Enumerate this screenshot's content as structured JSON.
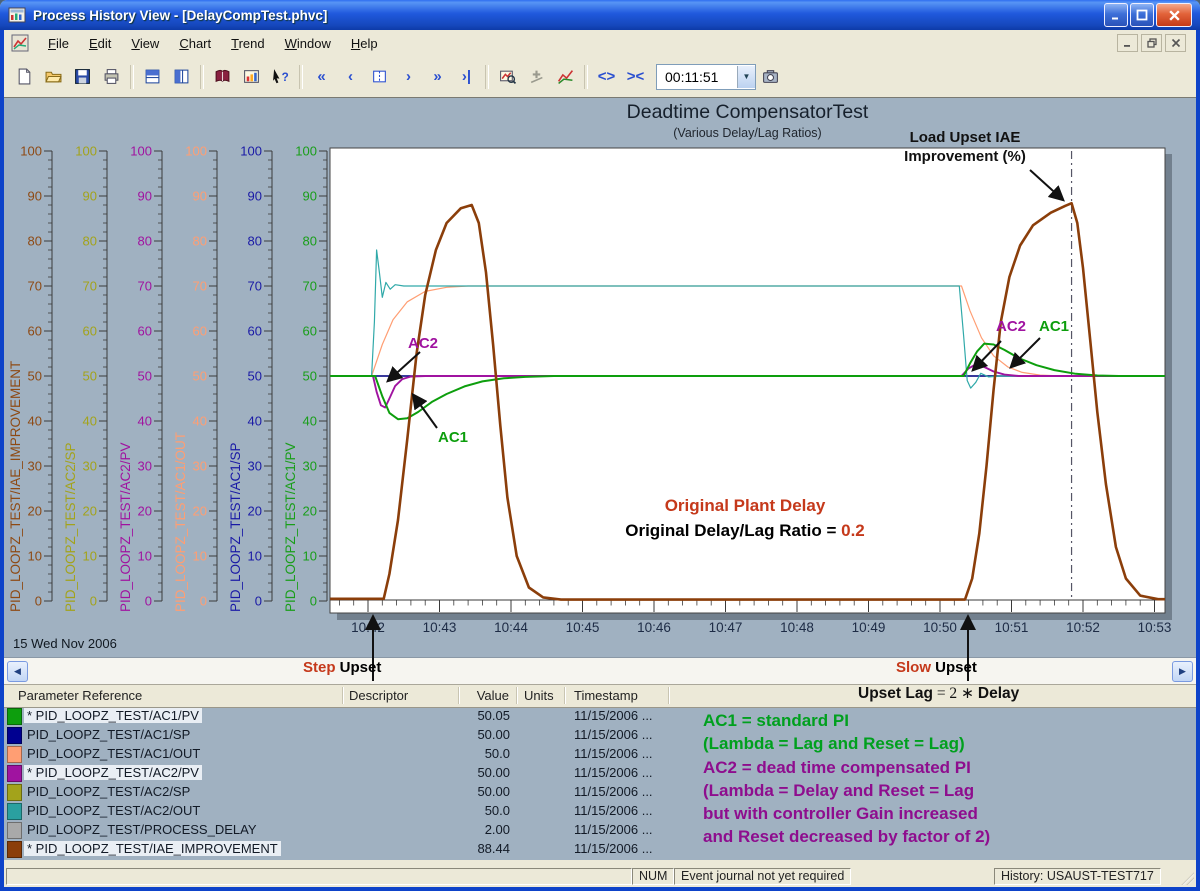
{
  "window": {
    "title": "Process History View - [DelayCompTest.phvc]",
    "menu": [
      "File",
      "Edit",
      "View",
      "Chart",
      "Trend",
      "Window",
      "Help"
    ]
  },
  "toolbar": {
    "items": [
      "new-file",
      "open-folder",
      "save",
      "print",
      "|",
      "tile-horizontal",
      "tile-vertical",
      "|",
      "help-book",
      "chart-settings",
      "context-help",
      "|",
      "nav-first",
      "nav-prev",
      "nav-page",
      "nav-next",
      "nav-jump",
      "nav-last",
      "|",
      "view-all",
      "add-curve",
      "curve-style",
      "|",
      "expand-x",
      "compress-x",
      "time-combo",
      "snapshot"
    ],
    "glyphs": {
      "nav-first": "«",
      "nav-prev": "‹",
      "nav-next": "›",
      "nav-jump": "»",
      "nav-last": "›|",
      "expand-x": "<>",
      "compress-x": "><"
    },
    "time_value": "00:11:51"
  },
  "chart_data": {
    "type": "line",
    "title": "Deadtime CompensatorTest",
    "subtitle": "(Various Delay/Lag Ratios)",
    "date_label": "15 Wed Nov 2006",
    "x_axis": {
      "labels": [
        "10:42",
        "10:43",
        "10:44",
        "10:45",
        "10:46",
        "10:47",
        "10:48",
        "10:49",
        "10:50",
        "10:51",
        "10:52",
        "10:53"
      ],
      "unit": "time (hh:mm)"
    },
    "y_axis": {
      "range": [
        0,
        100
      ],
      "ticks": [
        0,
        10,
        20,
        30,
        40,
        50,
        60,
        70,
        80,
        90,
        100
      ]
    },
    "axes": [
      {
        "label": "PID_LOOPZ_TEST/IAE_IMPROVEMENT",
        "color": "#8E4A14"
      },
      {
        "label": "PID_LOOPZ_TEST/AC2/SP",
        "color": "#A3A31B"
      },
      {
        "label": "PID_LOOPZ_TEST/AC2/PV",
        "color": "#A013A0"
      },
      {
        "label": "PID_LOOPZ_TEST/AC1/OUT",
        "color": "#FF9E73"
      },
      {
        "label": "PID_LOOPZ_TEST/AC1/SP",
        "color": "#1A1AA6"
      },
      {
        "label": "PID_LOOPZ_TEST/AC1/PV",
        "color": "#199E19"
      }
    ],
    "series": [
      {
        "name": "PID_LOOPZ_TEST/AC2/SP",
        "color": "#A3A31B",
        "width": 1.3,
        "points": [
          [
            -0.53,
            50
          ],
          [
            11.15,
            50
          ]
        ]
      },
      {
        "name": "PID_LOOPZ_TEST/AC1/SP",
        "color": "#00008F",
        "width": 1.5,
        "points": [
          [
            -0.53,
            50
          ],
          [
            11.15,
            50
          ]
        ]
      },
      {
        "name": "PID_LOOPZ_TEST/AC1/OUT",
        "color": "#FF9E73",
        "width": 1.2,
        "points": [
          [
            -0.53,
            50
          ],
          [
            0.05,
            50
          ],
          [
            0.2,
            57
          ],
          [
            0.35,
            62.5
          ],
          [
            0.55,
            66.5
          ],
          [
            0.8,
            68.8
          ],
          [
            1.1,
            69.7
          ],
          [
            1.4,
            70
          ],
          [
            8.3,
            70
          ],
          [
            8.42,
            64.5
          ],
          [
            8.58,
            58.5
          ],
          [
            8.75,
            54.5
          ],
          [
            8.95,
            52
          ],
          [
            9.15,
            50.8
          ],
          [
            9.4,
            50.2
          ],
          [
            9.7,
            50
          ],
          [
            11.15,
            50
          ]
        ]
      },
      {
        "name": "PID_LOOPZ_TEST/AC2/OUT",
        "color": "#30A9A9",
        "width": 1.2,
        "points": [
          [
            -0.53,
            50
          ],
          [
            0.05,
            50
          ],
          [
            0.09,
            62
          ],
          [
            0.12,
            78
          ],
          [
            0.16,
            73
          ],
          [
            0.2,
            67.5
          ],
          [
            0.25,
            70.8
          ],
          [
            0.31,
            69.3
          ],
          [
            0.38,
            70.3
          ],
          [
            0.5,
            70
          ],
          [
            8.27,
            70
          ],
          [
            8.33,
            59
          ],
          [
            8.38,
            49
          ],
          [
            8.43,
            47.3
          ],
          [
            8.5,
            48.6
          ],
          [
            8.57,
            50.6
          ],
          [
            8.68,
            49.8
          ],
          [
            8.85,
            50
          ],
          [
            11.15,
            50
          ]
        ]
      },
      {
        "name": "PID_LOOPZ_TEST/AC2/PV",
        "color": "#A013A0",
        "width": 1.9,
        "points": [
          [
            -0.53,
            50
          ],
          [
            0.07,
            50
          ],
          [
            0.12,
            46.5
          ],
          [
            0.18,
            43.5
          ],
          [
            0.24,
            43
          ],
          [
            0.3,
            45
          ],
          [
            0.38,
            47.8
          ],
          [
            0.48,
            49.3
          ],
          [
            0.6,
            49.9
          ],
          [
            0.8,
            50
          ],
          [
            8.3,
            50
          ],
          [
            8.4,
            51.7
          ],
          [
            8.5,
            52.6
          ],
          [
            8.62,
            52
          ],
          [
            8.75,
            51
          ],
          [
            8.9,
            50.3
          ],
          [
            9.1,
            50
          ],
          [
            11.15,
            50
          ]
        ]
      },
      {
        "name": "PID_LOOPZ_TEST/AC1/PV",
        "color": "#0D9E0D",
        "width": 2.0,
        "points": [
          [
            -0.53,
            50
          ],
          [
            0.1,
            50
          ],
          [
            0.2,
            45.5
          ],
          [
            0.3,
            41.8
          ],
          [
            0.42,
            40.4
          ],
          [
            0.55,
            40.6
          ],
          [
            0.7,
            42
          ],
          [
            0.9,
            44.3
          ],
          [
            1.1,
            46
          ],
          [
            1.35,
            47.7
          ],
          [
            1.6,
            48.8
          ],
          [
            1.9,
            49.5
          ],
          [
            2.2,
            49.8
          ],
          [
            2.6,
            50
          ],
          [
            8.33,
            50
          ],
          [
            8.42,
            52.8
          ],
          [
            8.52,
            55.5
          ],
          [
            8.62,
            57.2
          ],
          [
            8.75,
            57
          ],
          [
            8.9,
            55.8
          ],
          [
            9.1,
            54
          ],
          [
            9.35,
            52.4
          ],
          [
            9.6,
            51.3
          ],
          [
            9.9,
            50.5
          ],
          [
            10.2,
            50.1
          ],
          [
            10.5,
            50
          ],
          [
            11.15,
            50
          ]
        ]
      },
      {
        "name": "PID_LOOPZ_TEST/IAE_IMPROVEMENT",
        "color": "#8B3E0A",
        "width": 2.6,
        "points": [
          [
            -0.53,
            0.5
          ],
          [
            0.22,
            0.5
          ],
          [
            0.3,
            6
          ],
          [
            0.42,
            18
          ],
          [
            0.55,
            36
          ],
          [
            0.68,
            55
          ],
          [
            0.8,
            68
          ],
          [
            0.95,
            78
          ],
          [
            1.1,
            84
          ],
          [
            1.3,
            87.3
          ],
          [
            1.45,
            88
          ],
          [
            1.55,
            84
          ],
          [
            1.65,
            73
          ],
          [
            1.75,
            57
          ],
          [
            1.85,
            39
          ],
          [
            1.95,
            23
          ],
          [
            2.08,
            10
          ],
          [
            2.25,
            3
          ],
          [
            2.45,
            0.8
          ],
          [
            2.7,
            0.3
          ],
          [
            8.35,
            0.3
          ],
          [
            8.45,
            5
          ],
          [
            8.55,
            15
          ],
          [
            8.65,
            30
          ],
          [
            8.75,
            47
          ],
          [
            8.85,
            62
          ],
          [
            8.97,
            72
          ],
          [
            9.12,
            79
          ],
          [
            9.3,
            83.5
          ],
          [
            9.55,
            86.3
          ],
          [
            9.75,
            87.8
          ],
          [
            9.84,
            88.4
          ],
          [
            9.92,
            84
          ],
          [
            10.0,
            74
          ],
          [
            10.1,
            58
          ],
          [
            10.2,
            42
          ],
          [
            10.32,
            26
          ],
          [
            10.46,
            12
          ],
          [
            10.6,
            5
          ],
          [
            10.8,
            1.2
          ],
          [
            11.05,
            0.4
          ],
          [
            11.15,
            0.4
          ]
        ]
      }
    ],
    "cursor_line_x": 9.84
  },
  "annotations": {
    "load_upset": {
      "line1": "Load Upset IAE",
      "line2": "Improvement (%)"
    },
    "plant_delay": {
      "line1": "Original Plant Delay",
      "line2_black": "Original Delay/Lag Ratio = ",
      "line2_red": "0.2",
      "red": "#C5391B"
    },
    "ac2_left": "AC2",
    "ac1_left": "AC1",
    "ac2_right": "AC2",
    "ac1_right": "AC1",
    "step_upset": {
      "red": "Step",
      "black": " Upset"
    },
    "slow_upset": {
      "red": "Slow",
      "black": " Upset"
    },
    "upset_lag": {
      "pre": "Upset Lag",
      "mid": " = 2 ∗ ",
      "post": "Delay"
    },
    "arrows": [
      [
        420,
        352,
        389,
        380
      ],
      [
        437,
        428,
        414,
        396
      ],
      [
        1001,
        341,
        974,
        369
      ],
      [
        1040,
        338,
        1012,
        366
      ],
      [
        1030,
        170,
        1062,
        199
      ],
      [
        373,
        681,
        373,
        618
      ],
      [
        968,
        681,
        968,
        618
      ]
    ]
  },
  "table": {
    "headers": [
      "Parameter Reference",
      "Descriptor",
      "Value",
      "Units",
      "Timestamp"
    ],
    "rows": [
      {
        "color": "#0D9E0D",
        "starred": true,
        "name": "PID_LOOPZ_TEST/AC1/PV",
        "descriptor": "",
        "value": "50.05",
        "units": "",
        "timestamp": "11/15/2006 ..."
      },
      {
        "color": "#000090",
        "starred": false,
        "name": "PID_LOOPZ_TEST/AC1/SP",
        "descriptor": "",
        "value": "50.00",
        "units": "",
        "timestamp": "11/15/2006 ..."
      },
      {
        "color": "#FF9E73",
        "starred": false,
        "name": "PID_LOOPZ_TEST/AC1/OUT",
        "descriptor": "",
        "value": "50.0",
        "units": "",
        "timestamp": "11/15/2006 ..."
      },
      {
        "color": "#A013A0",
        "starred": true,
        "name": "PID_LOOPZ_TEST/AC2/PV",
        "descriptor": "",
        "value": "50.00",
        "units": "",
        "timestamp": "11/15/2006 ..."
      },
      {
        "color": "#A3A31B",
        "starred": false,
        "name": "PID_LOOPZ_TEST/AC2/SP",
        "descriptor": "",
        "value": "50.00",
        "units": "",
        "timestamp": "11/15/2006 ..."
      },
      {
        "color": "#2AA0A0",
        "starred": false,
        "name": "PID_LOOPZ_TEST/AC2/OUT",
        "descriptor": "",
        "value": "50.0",
        "units": "",
        "timestamp": "11/15/2006 ..."
      },
      {
        "color": "#A9A9A9",
        "starred": false,
        "name": "PID_LOOPZ_TEST/PROCESS_DELAY",
        "descriptor": "",
        "value": "2.00",
        "units": "",
        "timestamp": "11/15/2006 ..."
      },
      {
        "color": "#8B3E0A",
        "starred": true,
        "name": "PID_LOOPZ_TEST/IAE_IMPROVEMENT",
        "descriptor": "",
        "value": "88.44",
        "units": "",
        "timestamp": "11/15/2006 ..."
      }
    ]
  },
  "notes": {
    "lines": [
      {
        "text": "AC1 = standard PI",
        "color": "#00A01E"
      },
      {
        "text": "(Lambda = Lag and Reset = Lag)",
        "color": "#00A01E"
      },
      {
        "text": "AC2 = dead time compensated PI",
        "color": "#8E0D8E"
      },
      {
        "text": "(Lambda = Delay and Reset = Lag",
        "color": "#8E0D8E"
      },
      {
        "text": "but with controller Gain increased",
        "color": "#8E0D8E"
      },
      {
        "text": "and Reset decreased by factor of 2)",
        "color": "#8E0D8E"
      }
    ]
  },
  "status": {
    "num": "NUM",
    "event": "Event journal not yet required",
    "history": "History: USAUST-TEST717"
  }
}
